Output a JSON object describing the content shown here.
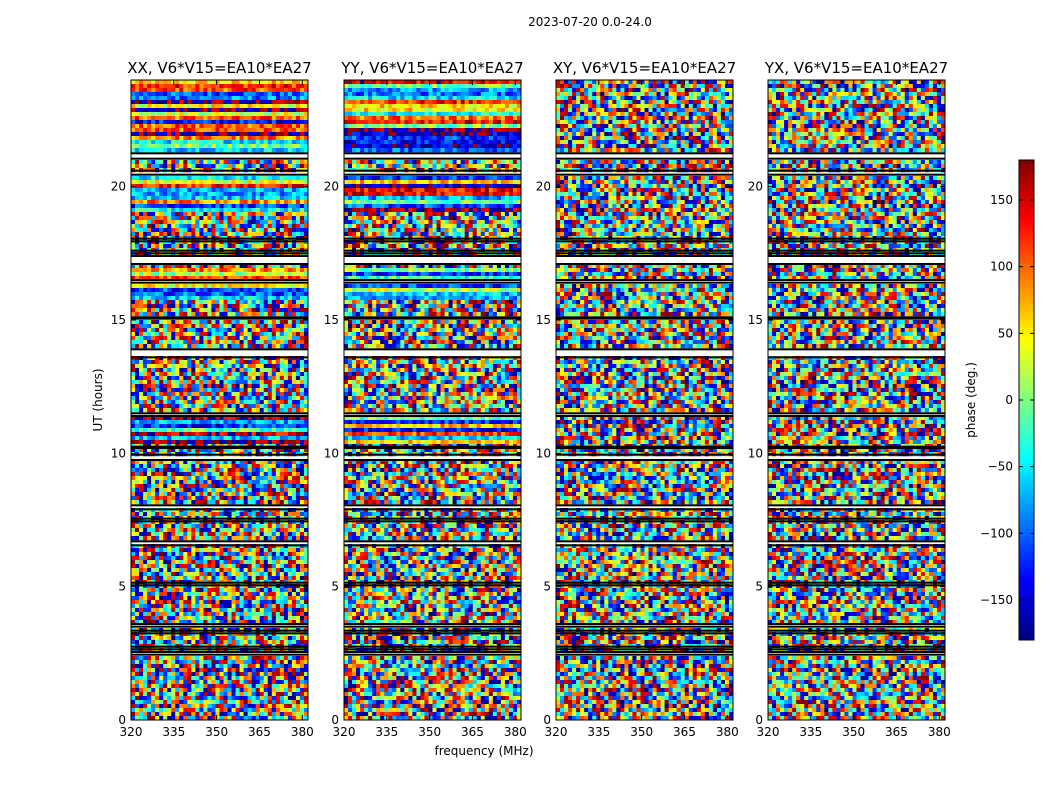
{
  "chart_data": {
    "type": "heatmap",
    "suptitle": "2023-07-20 0.0-24.0",
    "xlabel": "frequency (MHz)",
    "ylabel": "UT (hours)",
    "xlim": [
      320,
      382
    ],
    "ylim": [
      0,
      24
    ],
    "xticks": [
      "320",
      "335",
      "350",
      "365",
      "380"
    ],
    "yticks": [
      "0",
      "5",
      "10",
      "15",
      "20"
    ],
    "panels": [
      {
        "title": "XX, V6*V15=EA10*EA27",
        "pol": "XX"
      },
      {
        "title": "YY, V6*V15=EA10*EA27",
        "pol": "YY"
      },
      {
        "title": "XY, V6*V15=EA10*EA27",
        "pol": "XY"
      },
      {
        "title": "YX, V6*V15=EA10*EA27",
        "pol": "YX"
      }
    ],
    "colorbar": {
      "label": "phase (deg.)",
      "range": [
        -180,
        180
      ],
      "ticks": [
        "150",
        "100",
        "50",
        "0",
        "−50",
        "−100",
        "−150"
      ],
      "colormap": "jet"
    },
    "flagged_hours": [
      [
        21.05,
        21.25
      ],
      [
        20.45,
        20.6
      ],
      [
        17.95,
        18.05
      ],
      [
        17.5,
        17.6
      ],
      [
        17.1,
        17.4
      ],
      [
        16.4,
        16.5
      ],
      [
        15.05,
        15.1
      ],
      [
        13.6,
        13.9
      ],
      [
        11.4,
        11.5
      ],
      [
        10.2,
        10.25
      ],
      [
        9.75,
        9.95
      ],
      [
        7.9,
        8.05
      ],
      [
        7.45,
        7.55
      ],
      [
        6.55,
        6.7
      ],
      [
        5.05,
        5.15
      ],
      [
        3.5,
        3.6
      ],
      [
        3.25,
        3.35
      ],
      [
        2.65,
        2.75
      ],
      [
        2.45,
        2.55
      ]
    ],
    "smooth_hours": [
      [
        21.25,
        24.0
      ],
      [
        19.0,
        20.4
      ],
      [
        15.7,
        17.0
      ],
      [
        10.3,
        11.5
      ]
    ]
  }
}
